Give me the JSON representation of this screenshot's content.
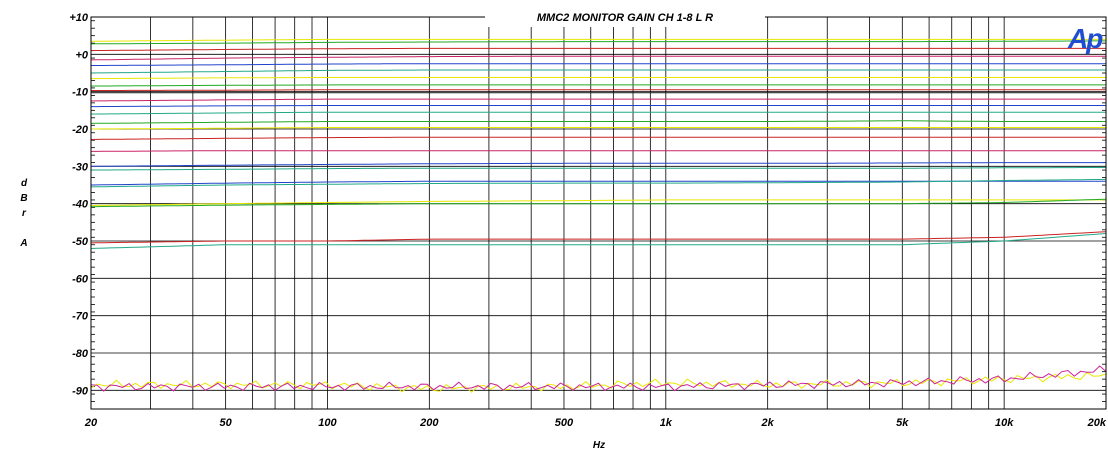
{
  "chart_data": {
    "type": "line",
    "title": "MMC2 MONITOR GAIN CH 1-8 L R",
    "xlabel": "Hz",
    "ylabel": "dBr A",
    "ylabel_chars": [
      "d",
      "B",
      "r",
      "",
      "A"
    ],
    "logo": "Ap",
    "x_scale": "log",
    "xlim": [
      20,
      20000
    ],
    "ylim": [
      -95,
      10
    ],
    "grid": true,
    "x_ticks": [
      {
        "v": 20,
        "label": "20"
      },
      {
        "v": 50,
        "label": "50"
      },
      {
        "v": 100,
        "label": "100"
      },
      {
        "v": 200,
        "label": "200"
      },
      {
        "v": 500,
        "label": "500"
      },
      {
        "v": 1000,
        "label": "1k"
      },
      {
        "v": 2000,
        "label": "2k"
      },
      {
        "v": 5000,
        "label": "5k"
      },
      {
        "v": 10000,
        "label": "10k"
      },
      {
        "v": 20000,
        "label": "20k"
      }
    ],
    "x_gridlines": [
      30,
      40,
      50,
      60,
      70,
      80,
      90,
      100,
      200,
      300,
      400,
      500,
      600,
      700,
      800,
      900,
      1000,
      2000,
      3000,
      4000,
      5000,
      6000,
      7000,
      8000,
      9000,
      10000
    ],
    "y_ticks": [
      {
        "v": 10,
        "label": "+10"
      },
      {
        "v": 0,
        "label": "+0"
      },
      {
        "v": -10,
        "label": "-10"
      },
      {
        "v": -20,
        "label": "-20"
      },
      {
        "v": -30,
        "label": "-30"
      },
      {
        "v": -40,
        "label": "-40"
      },
      {
        "v": -50,
        "label": "-50"
      },
      {
        "v": -60,
        "label": "-60"
      },
      {
        "v": -70,
        "label": "-70"
      },
      {
        "v": -80,
        "label": "-80"
      },
      {
        "v": -90,
        "label": "-90"
      }
    ],
    "x_points": [
      20,
      50,
      100,
      200,
      500,
      1000,
      2000,
      5000,
      10000,
      20000
    ],
    "series": [
      {
        "color": "#e8e800",
        "values": [
          3.5,
          3.8,
          4.0,
          4.0,
          4.0,
          4.0,
          4.0,
          4.0,
          4.0,
          4.0
        ]
      },
      {
        "color": "#22aa22",
        "values": [
          2.8,
          3.0,
          3.2,
          3.3,
          3.4,
          3.4,
          3.4,
          3.4,
          3.5,
          3.6
        ]
      },
      {
        "color": "#cc2222",
        "values": [
          1.0,
          1.3,
          1.5,
          1.6,
          1.6,
          1.6,
          1.6,
          1.6,
          1.6,
          1.6
        ]
      },
      {
        "color": "#cc2266",
        "values": [
          -1.5,
          -1.0,
          -0.8,
          -0.6,
          -0.5,
          -0.5,
          -0.5,
          -0.5,
          -0.5,
          -0.5
        ]
      },
      {
        "color": "#2244cc",
        "values": [
          -3.0,
          -2.8,
          -2.6,
          -2.5,
          -2.5,
          -2.5,
          -2.5,
          -2.5,
          -2.5,
          -2.5
        ]
      },
      {
        "color": "#22aa88",
        "values": [
          -5.0,
          -4.6,
          -4.3,
          -4.2,
          -4.2,
          -4.2,
          -4.2,
          -4.2,
          -4.2,
          -4.2
        ]
      },
      {
        "color": "#e8e800",
        "values": [
          -6.5,
          -6.3,
          -6.2,
          -6.2,
          -6.2,
          -6.2,
          -6.2,
          -6.2,
          -6.2,
          -6.2
        ]
      },
      {
        "color": "#22aa22",
        "values": [
          -8.5,
          -8.3,
          -8.2,
          -8.2,
          -8.2,
          -8.2,
          -8.2,
          -8.2,
          -8.2,
          -8.2
        ]
      },
      {
        "color": "#cc2222",
        "values": [
          -9.7,
          -9.6,
          -9.5,
          -9.5,
          -9.5,
          -9.5,
          -9.5,
          -9.5,
          -9.5,
          -9.5
        ]
      },
      {
        "color": "#222222",
        "values": [
          -10.3,
          -10.3,
          -10.3,
          -10.3,
          -10.3,
          -10.3,
          -10.3,
          -10.3,
          -10.3,
          -10.3
        ]
      },
      {
        "color": "#cc2266",
        "values": [
          -12.5,
          -12.2,
          -12.0,
          -12.0,
          -12.0,
          -12.0,
          -12.0,
          -12.0,
          -12.0,
          -12.0
        ]
      },
      {
        "color": "#2244cc",
        "values": [
          -14.0,
          -13.8,
          -13.7,
          -13.7,
          -13.7,
          -13.7,
          -13.7,
          -13.7,
          -13.7,
          -13.7
        ]
      },
      {
        "color": "#22aa88",
        "values": [
          -16.0,
          -15.7,
          -15.5,
          -15.5,
          -15.5,
          -15.5,
          -15.5,
          -15.5,
          -15.5,
          -15.5
        ]
      },
      {
        "color": "#22aa22",
        "values": [
          -18.5,
          -18.2,
          -18.0,
          -18.0,
          -18.0,
          -18.0,
          -18.0,
          -17.8,
          -18.0,
          -18.0
        ]
      },
      {
        "color": "#e8e800",
        "values": [
          -20.0,
          -19.8,
          -19.6,
          -19.6,
          -19.6,
          -19.6,
          -19.6,
          -19.6,
          -19.6,
          -19.6
        ]
      },
      {
        "color": "#cc2222",
        "values": [
          -22.8,
          -22.5,
          -22.3,
          -22.2,
          -22.2,
          -22.2,
          -22.2,
          -22.2,
          -22.2,
          -22.2
        ]
      },
      {
        "color": "#cc2266",
        "values": [
          -26.0,
          -25.8,
          -25.8,
          -25.8,
          -25.8,
          -25.8,
          -25.8,
          -25.8,
          -25.8,
          -25.8
        ]
      },
      {
        "color": "#2244cc",
        "values": [
          -30.0,
          -29.7,
          -29.5,
          -29.3,
          -29.2,
          -29.2,
          -29.2,
          -29.1,
          -29.0,
          -29.0
        ]
      },
      {
        "color": "#22aa88",
        "values": [
          -31.0,
          -30.8,
          -30.6,
          -30.5,
          -30.5,
          -30.5,
          -30.5,
          -30.5,
          -30.4,
          -30.3
        ]
      },
      {
        "color": "#2244cc",
        "values": [
          -35.0,
          -34.5,
          -34.2,
          -34.0,
          -34.0,
          -34.0,
          -34.0,
          -34.0,
          -34.0,
          -34.0
        ]
      },
      {
        "color": "#22aa88",
        "values": [
          -35.5,
          -35.0,
          -34.8,
          -34.6,
          -34.5,
          -34.5,
          -34.4,
          -34.2,
          -33.8,
          -33.5
        ]
      },
      {
        "color": "#e8e800",
        "values": [
          -40.5,
          -40.0,
          -39.7,
          -39.4,
          -39.2,
          -39.0,
          -39.0,
          -39.0,
          -39.0,
          -39.0
        ]
      },
      {
        "color": "#22aa22",
        "values": [
          -40.8,
          -40.4,
          -40.2,
          -40.0,
          -40.0,
          -40.0,
          -40.0,
          -40.0,
          -39.7,
          -38.8
        ]
      },
      {
        "color": "#cc2222",
        "values": [
          -50.5,
          -50.0,
          -50.0,
          -49.5,
          -49.5,
          -49.5,
          -49.5,
          -49.5,
          -49.0,
          -47.5
        ]
      },
      {
        "color": "#22aa88",
        "values": [
          -52.0,
          -51.0,
          -51.0,
          -51.0,
          -51.0,
          -51.0,
          -51.0,
          -51.0,
          -50.0,
          -48.0
        ]
      },
      {
        "color": "#e8e800",
        "values": [
          -88.5,
          -88.5,
          -88.5,
          -89.5,
          -89.0,
          -88.0,
          -88.5,
          -88.0,
          -87.0,
          -86.0
        ]
      },
      {
        "color": "#cc2299",
        "values": [
          -89.0,
          -89.0,
          -89.0,
          -89.0,
          -89.0,
          -89.0,
          -88.5,
          -88.0,
          -87.0,
          -84.5
        ]
      }
    ]
  }
}
